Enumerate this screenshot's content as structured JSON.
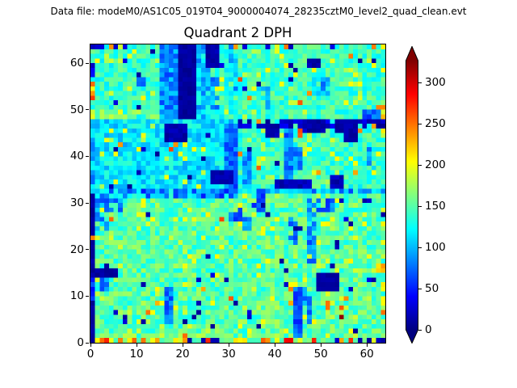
{
  "header": {
    "datafile": "Data file: modeM0/AS1C05_019T04_9000004074_28235cztM0_level2_quad_clean.evt"
  },
  "chart_data": {
    "type": "heatmap",
    "title": "Quadrant 2 DPH",
    "xlabel": "",
    "ylabel": "",
    "x_range": [
      0,
      64
    ],
    "y_range": [
      0,
      64
    ],
    "xticks": [
      0,
      10,
      20,
      30,
      40,
      50,
      60
    ],
    "yticks": [
      0,
      10,
      20,
      30,
      40,
      50,
      60
    ],
    "grid": "off",
    "colormap": "jet",
    "colorbar": {
      "position": "right",
      "extend": "both",
      "ticks": [
        0,
        50,
        100,
        150,
        200,
        250,
        300
      ],
      "vmin": 0,
      "vmax": 327,
      "under_color": "#000080",
      "over_color": "#800000"
    },
    "description": "64x64 detector plane histogram (counts per pixel). Background ~140-155 counts (cyan-green). Dead/noisy navy regions (~10 counts): column x0 for y0-31, vertical band x19-22 y48-63, module-boundary band y46-47 x32-63, blobs at (16-20,43-46),(26-30,34-36),(49-53,11-14),(47-49,59-60),(38-40,44-46),(55-57,43-46). Hot pixels (230-320 counts, orange/red) along bottom row y0 and scattered at left edge y52-55 and top row y63.",
    "heatmap": {
      "size": 64,
      "seed": 20,
      "dot_v": 10,
      "base_regions": [
        {
          "x": 0,
          "y": 0,
          "w": 64,
          "h": 32,
          "v": 150,
          "n": 26
        },
        {
          "x": 0,
          "y": 32,
          "w": 32,
          "h": 16,
          "v": 116,
          "n": 24
        },
        {
          "x": 32,
          "y": 32,
          "w": 32,
          "h": 16,
          "v": 140,
          "n": 24
        },
        {
          "x": 0,
          "y": 48,
          "w": 32,
          "h": 16,
          "v": 138,
          "n": 24
        },
        {
          "x": 32,
          "y": 48,
          "w": 32,
          "h": 16,
          "v": 142,
          "n": 24
        }
      ],
      "speckles": {
        "navy_p": 0.013,
        "navy_v": [
          8,
          35
        ],
        "hot_p": 0.009,
        "hot_v": [
          228,
          268
        ],
        "yellow_p": 0.07,
        "yellow_v": [
          175,
          208
        ]
      },
      "rows": {
        "bottom": {
          "hot_p": 0.3,
          "hot_v": [
            232,
            292
          ],
          "yellow_p": 0.2,
          "yellow_v": [
            188,
            218
          ],
          "navy_p": 0.12,
          "navy_v": [
            8,
            28
          ],
          "base_v": [
            138,
            168
          ]
        },
        "top": {
          "hot_p": 0.12,
          "hot_v": [
            232,
            268
          ],
          "navy_p": 0.11,
          "navy_v": [
            10,
            35
          ]
        }
      },
      "right_col": {
        "p": 0.28,
        "v": [
          178,
          238
        ]
      },
      "features": [
        {
          "x": 15,
          "y": 48,
          "w": 4,
          "h": 16,
          "v": 88,
          "n": 28
        },
        {
          "x": 23,
          "y": 48,
          "w": 3,
          "h": 16,
          "v": 105,
          "n": 30
        },
        {
          "x": 19,
          "y": 48,
          "w": 4,
          "h": 16,
          "v": 10,
          "n": 6
        },
        {
          "x": 25,
          "y": 59,
          "w": 3,
          "h": 5,
          "v": 14,
          "n": 8
        },
        {
          "x": 26,
          "y": 50,
          "w": 2,
          "h": 7,
          "v": 92,
          "n": 25,
          "sk": 0.2
        },
        {
          "x": 1,
          "y": 48,
          "w": 14,
          "h": 2,
          "v": 172,
          "n": 28,
          "sk": 0.15
        },
        {
          "x": 30,
          "y": 54,
          "w": 2,
          "h": 10,
          "v": 105,
          "n": 30,
          "sk": 0.35
        },
        {
          "x": 10,
          "y": 55,
          "w": 2,
          "h": 2,
          "v": 80,
          "n": 20,
          "sk": 0.3
        },
        {
          "x": 0,
          "y": 48,
          "w": 1,
          "h": 2,
          "v": 198,
          "n": 12
        },
        {
          "x": 0,
          "y": 57,
          "w": 1,
          "h": 3,
          "v": 30,
          "n": 16
        },
        {
          "x": 0,
          "y": 52,
          "w": 1,
          "h": 1,
          "v": 268
        },
        {
          "x": 0,
          "y": 53,
          "w": 1,
          "h": 1,
          "v": 238
        },
        {
          "x": 0,
          "y": 55,
          "w": 1,
          "h": 1,
          "v": 252
        },
        {
          "x": 16,
          "y": 43,
          "w": 5,
          "h": 4,
          "v": 14,
          "n": 8
        },
        {
          "x": 18,
          "y": 42,
          "w": 1,
          "h": 1,
          "v": 240
        },
        {
          "x": 29,
          "y": 32,
          "w": 3,
          "h": 15,
          "v": 75,
          "n": 22
        },
        {
          "x": 26,
          "y": 34,
          "w": 5,
          "h": 3,
          "v": 16,
          "n": 9
        },
        {
          "x": 0,
          "y": 31,
          "w": 32,
          "h": 2,
          "v": 92,
          "n": 48
        },
        {
          "x": 0,
          "y": 32,
          "w": 1,
          "h": 16,
          "v": 100,
          "n": 30
        },
        {
          "x": 32,
          "y": 46,
          "w": 32,
          "h": 2,
          "v": 25,
          "n": 20,
          "sk": 0.3
        },
        {
          "x": 47,
          "y": 45,
          "w": 4,
          "h": 3,
          "v": 12,
          "n": 7
        },
        {
          "x": 53,
          "y": 45,
          "w": 4,
          "h": 3,
          "v": 12,
          "n": 7
        },
        {
          "x": 36,
          "y": 47,
          "w": 1,
          "h": 1,
          "v": 240
        },
        {
          "x": 58,
          "y": 45,
          "w": 1,
          "h": 1,
          "v": 245
        },
        {
          "x": 61,
          "y": 46,
          "w": 1,
          "h": 1,
          "v": 235
        },
        {
          "x": 47,
          "y": 59,
          "w": 3,
          "h": 2,
          "v": 13,
          "n": 7
        },
        {
          "x": 48,
          "y": 53,
          "w": 4,
          "h": 4,
          "v": 95,
          "n": 26,
          "sk": 0.2
        },
        {
          "x": 36,
          "y": 50,
          "w": 3,
          "h": 5,
          "v": 100,
          "n": 28,
          "sk": 0.3
        },
        {
          "x": 59,
          "y": 48,
          "w": 4,
          "h": 2,
          "v": 68,
          "n": 24
        },
        {
          "x": 62,
          "y": 50,
          "w": 2,
          "h": 1,
          "v": 238,
          "n": 14
        },
        {
          "x": 38,
          "y": 44,
          "w": 3,
          "h": 3,
          "v": 14,
          "n": 8
        },
        {
          "x": 55,
          "y": 43,
          "w": 3,
          "h": 4,
          "v": 13,
          "n": 8
        },
        {
          "x": 42,
          "y": 33,
          "w": 2,
          "h": 13,
          "v": 80,
          "n": 24
        },
        {
          "x": 44,
          "y": 37,
          "w": 2,
          "h": 5,
          "v": 86,
          "n": 24
        },
        {
          "x": 40,
          "y": 33,
          "w": 8,
          "h": 2,
          "v": 18,
          "n": 10
        },
        {
          "x": 52,
          "y": 33,
          "w": 3,
          "h": 3,
          "v": 18,
          "n": 10
        },
        {
          "x": 33,
          "y": 32,
          "w": 2,
          "h": 9,
          "v": 90,
          "n": 26
        },
        {
          "x": 60,
          "y": 37,
          "w": 2,
          "h": 5,
          "v": 95,
          "n": 26,
          "sk": 0.3
        },
        {
          "x": 32,
          "y": 32,
          "w": 32,
          "h": 1,
          "v": 102,
          "n": 40
        },
        {
          "x": 0,
          "y": 1,
          "w": 64,
          "h": 1,
          "v": 168,
          "n": 25,
          "sk": 0.55
        },
        {
          "x": 1,
          "y": 14,
          "w": 5,
          "h": 2,
          "v": 12,
          "n": 7
        },
        {
          "x": 2,
          "y": 11,
          "w": 2,
          "h": 3,
          "v": 82,
          "n": 20
        },
        {
          "x": 16,
          "y": 4,
          "w": 2,
          "h": 8,
          "v": 78,
          "n": 22
        },
        {
          "x": 1,
          "y": 28,
          "w": 6,
          "h": 3,
          "v": 84,
          "n": 25,
          "sk": 0.25
        },
        {
          "x": 1,
          "y": 24,
          "w": 3,
          "h": 4,
          "v": 100,
          "n": 30,
          "sk": 0.3
        },
        {
          "x": 30,
          "y": 26,
          "w": 3,
          "h": 3,
          "v": 74,
          "n": 22,
          "sk": 0.2
        },
        {
          "x": 33,
          "y": 24,
          "w": 2,
          "h": 3,
          "v": 84,
          "n": 22,
          "sk": 0.2
        },
        {
          "x": 35,
          "y": 28,
          "w": 3,
          "h": 2,
          "v": 70,
          "n": 22,
          "sk": 0.2
        },
        {
          "x": 36,
          "y": 30,
          "w": 2,
          "h": 2,
          "v": 60,
          "n": 20
        },
        {
          "x": 43,
          "y": 21,
          "w": 2,
          "h": 6,
          "v": 78,
          "n": 22,
          "sk": 0.15
        },
        {
          "x": 47,
          "y": 17,
          "w": 2,
          "h": 14,
          "v": 85,
          "n": 24,
          "sk": 0.3
        },
        {
          "x": 49,
          "y": 28,
          "w": 4,
          "h": 3,
          "v": 75,
          "n": 22,
          "sk": 0.2
        },
        {
          "x": 53,
          "y": 30,
          "w": 1,
          "h": 1,
          "v": 200
        },
        {
          "x": 44,
          "y": 1,
          "w": 2,
          "h": 11,
          "v": 70,
          "n": 20
        },
        {
          "x": 46,
          "y": 8,
          "w": 1,
          "h": 4,
          "v": 84,
          "n": 20
        },
        {
          "x": 47,
          "y": 4,
          "w": 1,
          "h": 6,
          "v": 78,
          "n": 22
        },
        {
          "x": 49,
          "y": 11,
          "w": 5,
          "h": 4,
          "v": 10,
          "n": 6
        },
        {
          "x": 51,
          "y": 7,
          "w": 1,
          "h": 2,
          "v": 250
        },
        {
          "x": 54,
          "y": 5,
          "w": 1,
          "h": 1,
          "v": 322
        },
        {
          "x": 62,
          "y": 15,
          "w": 2,
          "h": 2,
          "v": 222,
          "n": 18
        },
        {
          "x": 0,
          "y": 0,
          "w": 1,
          "h": 32,
          "v": 10,
          "n": 6
        },
        {
          "x": 0,
          "y": 9,
          "w": 1,
          "h": 5,
          "v": 58,
          "n": 16
        },
        {
          "x": 0,
          "y": 22,
          "w": 1,
          "h": 1,
          "v": 245
        }
      ],
      "dots": [
        [
          11,
          12
        ],
        [
          11,
          4
        ],
        [
          25,
          18
        ],
        [
          31,
          8
        ],
        [
          20,
          4
        ],
        [
          38,
          27
        ],
        [
          37,
          29
        ],
        [
          53,
          21
        ],
        [
          57,
          2
        ],
        [
          8,
          33
        ],
        [
          14,
          40
        ],
        [
          44,
          24
        ],
        [
          36,
          3
        ],
        [
          52,
          16
        ],
        [
          42,
          15
        ],
        [
          56,
          25
        ],
        [
          23,
          6
        ],
        [
          29,
          13
        ],
        [
          61,
          13
        ],
        [
          59,
          30
        ],
        [
          26,
          3
        ],
        [
          12,
          27
        ],
        [
          58,
          60
        ],
        [
          36,
          55
        ],
        [
          44,
          58
        ],
        [
          10,
          57
        ],
        [
          63,
          27
        ],
        [
          21,
          35
        ],
        [
          5,
          41
        ]
      ]
    }
  }
}
